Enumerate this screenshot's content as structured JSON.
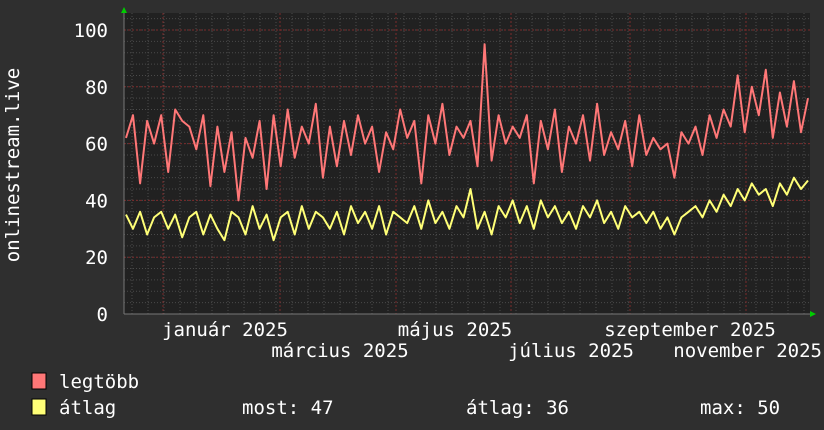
{
  "colors": {
    "background": "#2f2f2f",
    "canvas": "#212121",
    "max_series": "#ff7777",
    "avg_series": "#ffff77",
    "major_grid": "#7a2a2a",
    "minor_grid": "#555555",
    "arrow": "#00cc00"
  },
  "chart_data": {
    "type": "line",
    "ylabel": "onlinestream.live",
    "ylim": [
      0,
      106
    ],
    "y_ticks": [
      "0",
      "20",
      "40",
      "60",
      "80",
      "100"
    ],
    "x_tick_labels": [
      "január 2025",
      "március 2025",
      "május 2025",
      "július 2025",
      "szeptember 2025",
      "november 2025"
    ],
    "grid": true,
    "legend_placement": "bottom-left",
    "series": [
      {
        "name": "legtöbb",
        "color": "#ff7777",
        "values": [
          62,
          70,
          46,
          68,
          60,
          70,
          50,
          72,
          68,
          66,
          58,
          70,
          45,
          66,
          50,
          64,
          40,
          62,
          55,
          68,
          44,
          70,
          52,
          72,
          55,
          66,
          60,
          74,
          48,
          66,
          52,
          68,
          56,
          70,
          60,
          66,
          50,
          64,
          58,
          72,
          62,
          68,
          46,
          70,
          60,
          74,
          56,
          66,
          62,
          68,
          52,
          95,
          54,
          70,
          60,
          66,
          62,
          70,
          46,
          68,
          58,
          72,
          50,
          66,
          60,
          70,
          54,
          74,
          56,
          64,
          58,
          68,
          52,
          70,
          56,
          62,
          58,
          60,
          48,
          64,
          60,
          66,
          56,
          70,
          62,
          72,
          66,
          84,
          64,
          80,
          70,
          86,
          62,
          78,
          66,
          82,
          64,
          76
        ]
      },
      {
        "name": "átlag",
        "color": "#ffff77",
        "values": [
          35,
          30,
          36,
          28,
          34,
          36,
          30,
          35,
          27,
          34,
          36,
          28,
          35,
          30,
          26,
          36,
          34,
          28,
          38,
          30,
          35,
          26,
          34,
          36,
          28,
          38,
          30,
          36,
          34,
          30,
          36,
          28,
          38,
          32,
          36,
          30,
          38,
          28,
          36,
          34,
          32,
          38,
          30,
          40,
          32,
          36,
          30,
          38,
          34,
          44,
          30,
          36,
          28,
          38,
          34,
          40,
          32,
          38,
          30,
          40,
          34,
          38,
          32,
          36,
          30,
          38,
          34,
          40,
          32,
          36,
          30,
          38,
          34,
          36,
          32,
          36,
          30,
          34,
          28,
          34,
          36,
          38,
          34,
          40,
          36,
          42,
          38,
          44,
          40,
          46,
          42,
          44,
          38,
          46,
          42,
          48,
          44,
          47
        ]
      }
    ]
  },
  "legend": {
    "max_label": "legtöbb",
    "avg_label": "átlag",
    "now_stat": "most: 47",
    "avg_stat": "átlag: 36",
    "max_stat": "max: 50"
  }
}
